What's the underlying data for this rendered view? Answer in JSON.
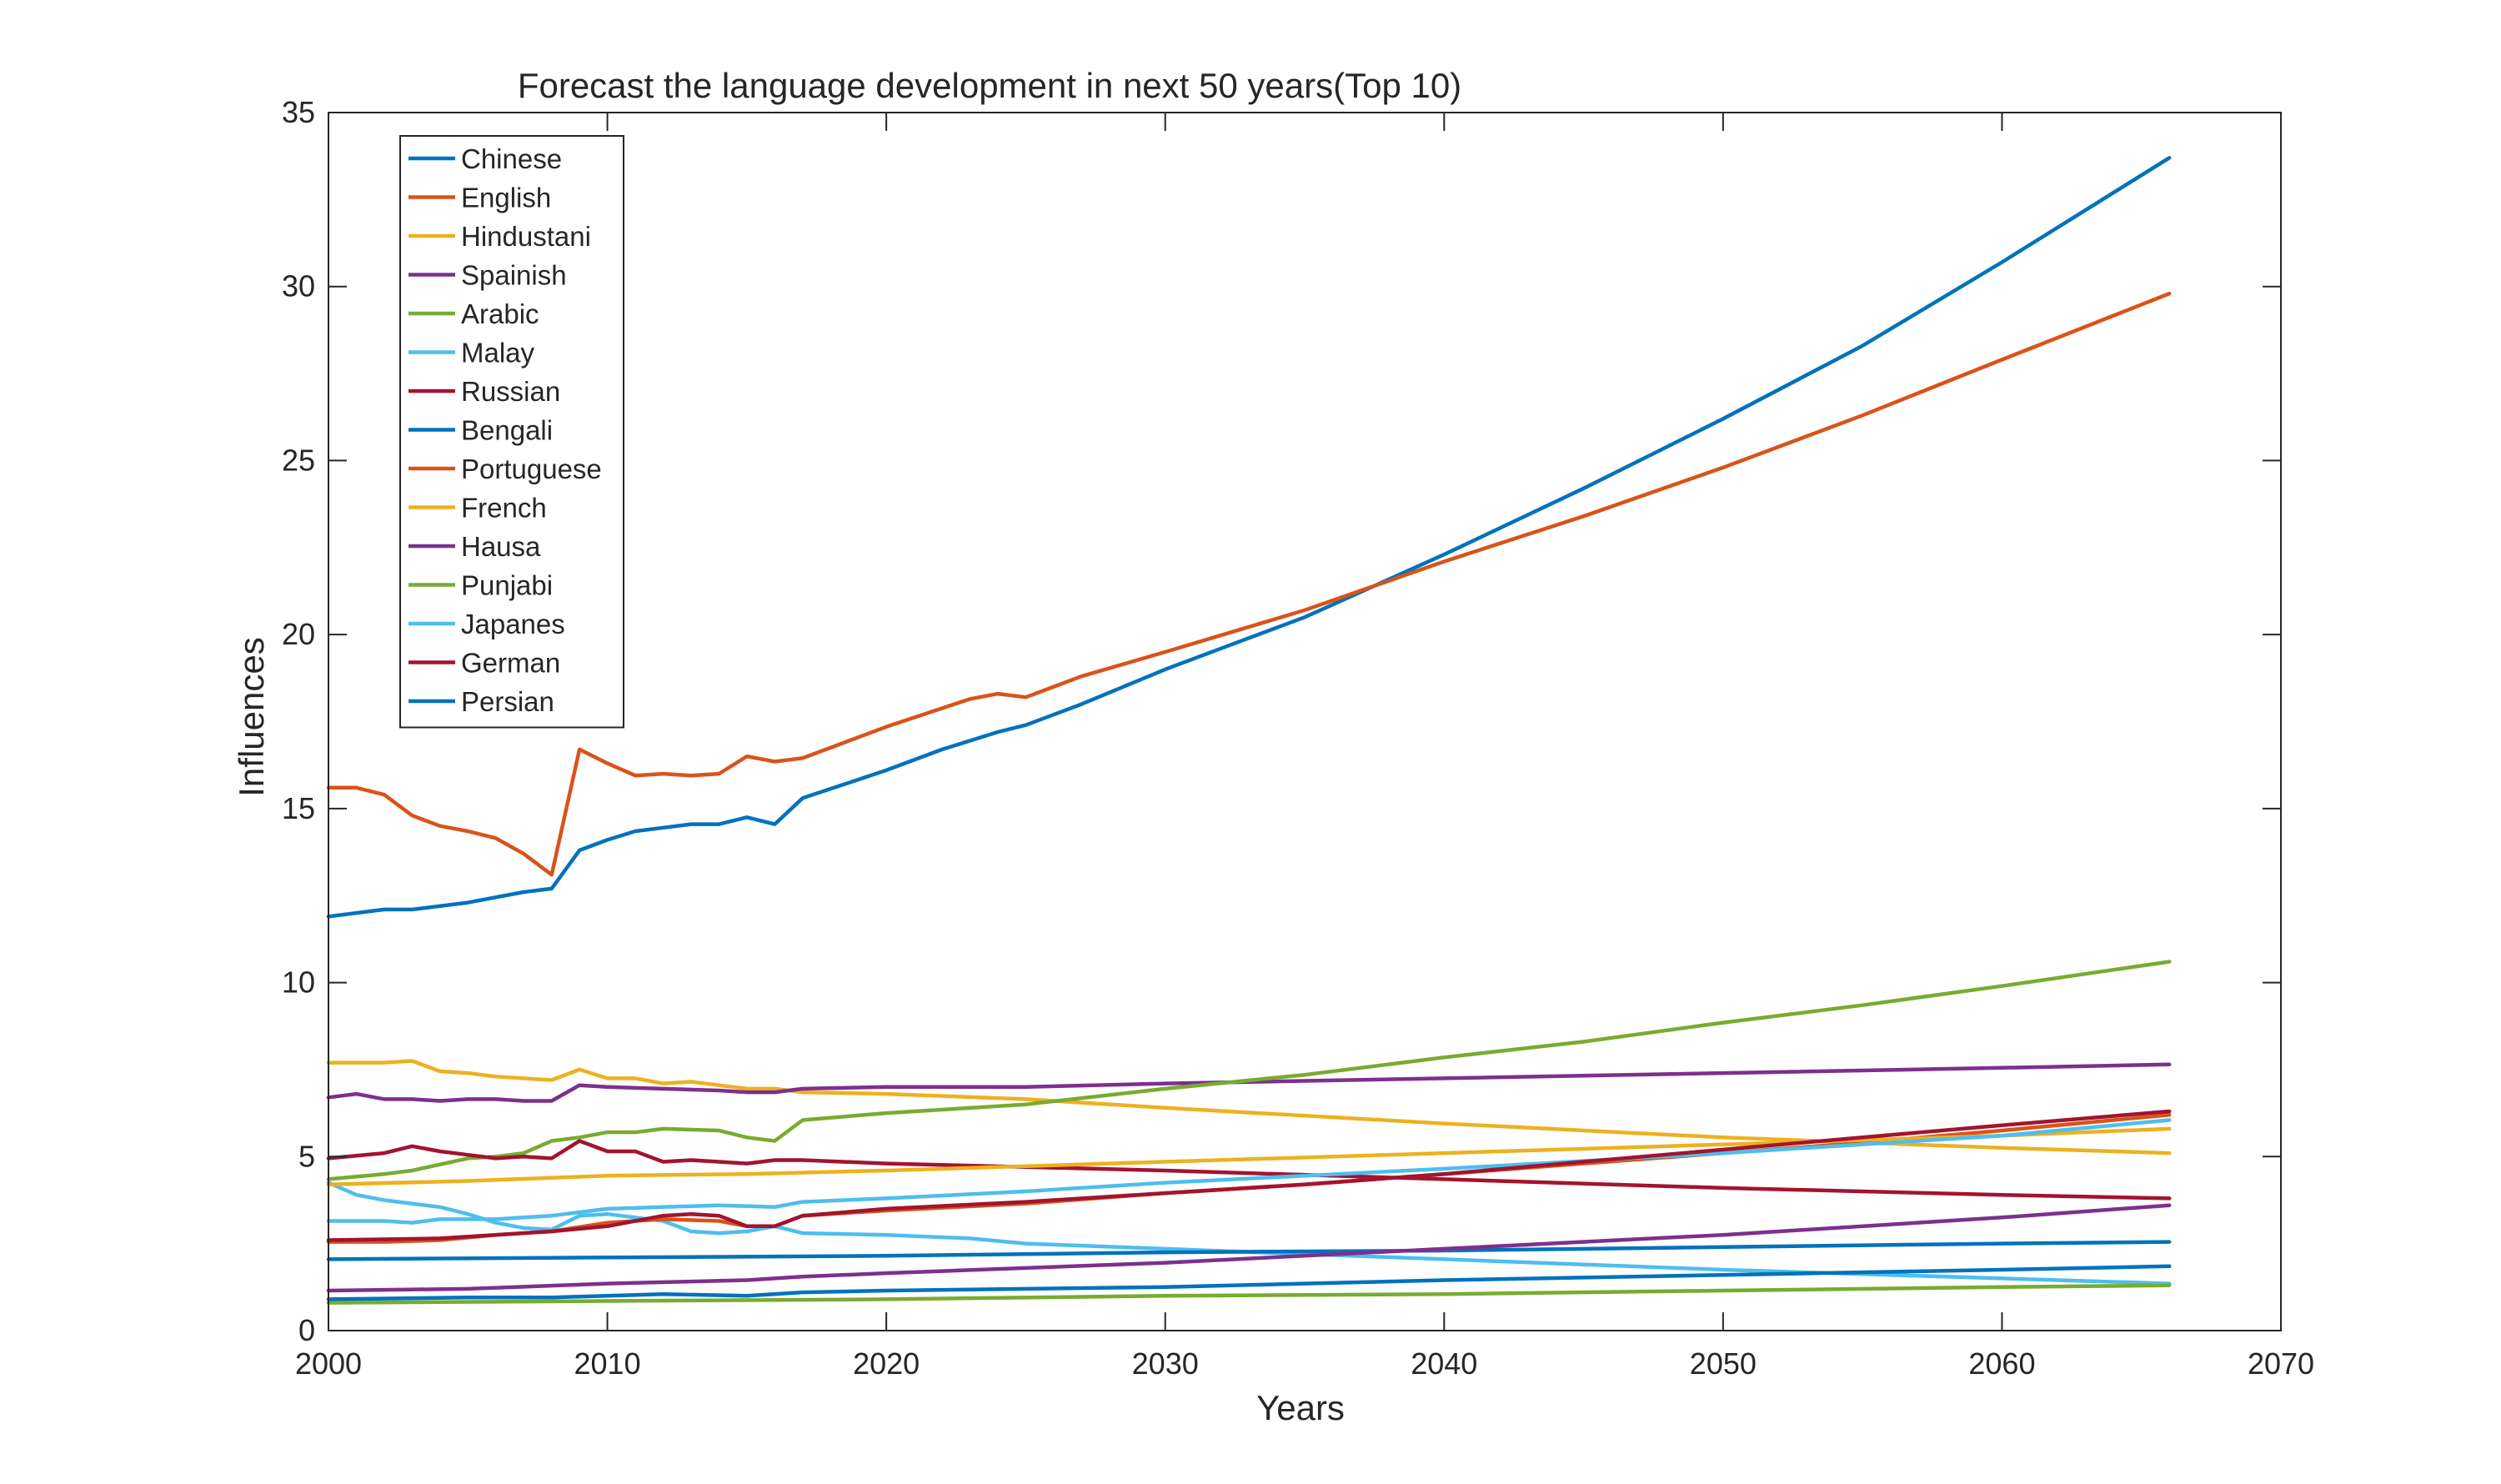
{
  "chart_data": {
    "type": "line",
    "title": "Forecast the language development in next 50 years(Top 10)",
    "xlabel": "Years",
    "ylabel": "Influences",
    "xlim": [
      2000,
      2070
    ],
    "ylim": [
      0,
      35
    ],
    "xticks": [
      2000,
      2010,
      2020,
      2030,
      2040,
      2050,
      2060,
      2070
    ],
    "yticks": [
      0,
      5,
      10,
      15,
      20,
      25,
      30,
      35
    ],
    "grid": false,
    "legend_position": "top-left",
    "series": [
      {
        "name": "Chinese",
        "color": "#0072BD",
        "points": [
          [
            2000,
            11.9
          ],
          [
            2002,
            12.1
          ],
          [
            2003,
            12.1
          ],
          [
            2005,
            12.3
          ],
          [
            2007,
            12.6
          ],
          [
            2008,
            12.7
          ],
          [
            2009,
            13.8
          ],
          [
            2010,
            14.1
          ],
          [
            2011,
            14.35
          ],
          [
            2012,
            14.45
          ],
          [
            2013,
            14.55
          ],
          [
            2014,
            14.55
          ],
          [
            2015,
            14.75
          ],
          [
            2016,
            14.55
          ],
          [
            2017,
            15.3
          ],
          [
            2020,
            16.1
          ],
          [
            2022,
            16.7
          ],
          [
            2024,
            17.2
          ],
          [
            2025,
            17.4
          ],
          [
            2027,
            18.0
          ],
          [
            2030,
            19.0
          ],
          [
            2032,
            19.6
          ],
          [
            2035,
            20.5
          ],
          [
            2040,
            22.3
          ],
          [
            2045,
            24.2
          ],
          [
            2050,
            26.2
          ],
          [
            2055,
            28.3
          ],
          [
            2060,
            30.7
          ],
          [
            2066,
            33.7
          ]
        ]
      },
      {
        "name": "English",
        "color": "#D95319",
        "points": [
          [
            2000,
            15.6
          ],
          [
            2001,
            15.6
          ],
          [
            2002,
            15.4
          ],
          [
            2003,
            14.8
          ],
          [
            2004,
            14.5
          ],
          [
            2005,
            14.35
          ],
          [
            2006,
            14.15
          ],
          [
            2007,
            13.7
          ],
          [
            2008,
            13.1
          ],
          [
            2009,
            16.7
          ],
          [
            2010,
            16.3
          ],
          [
            2011,
            15.95
          ],
          [
            2012,
            16.0
          ],
          [
            2013,
            15.95
          ],
          [
            2014,
            16.0
          ],
          [
            2015,
            16.5
          ],
          [
            2016,
            16.35
          ],
          [
            2017,
            16.45
          ],
          [
            2020,
            17.35
          ],
          [
            2023,
            18.15
          ],
          [
            2024,
            18.3
          ],
          [
            2025,
            18.2
          ],
          [
            2027,
            18.8
          ],
          [
            2030,
            19.5
          ],
          [
            2035,
            20.7
          ],
          [
            2040,
            22.1
          ],
          [
            2045,
            23.4
          ],
          [
            2050,
            24.8
          ],
          [
            2055,
            26.3
          ],
          [
            2060,
            27.9
          ],
          [
            2066,
            29.8
          ]
        ]
      },
      {
        "name": "Hindustani",
        "color": "#EDB120",
        "points": [
          [
            2000,
            7.7
          ],
          [
            2002,
            7.7
          ],
          [
            2003,
            7.75
          ],
          [
            2004,
            7.45
          ],
          [
            2005,
            7.4
          ],
          [
            2006,
            7.3
          ],
          [
            2008,
            7.2
          ],
          [
            2009,
            7.5
          ],
          [
            2010,
            7.25
          ],
          [
            2011,
            7.25
          ],
          [
            2012,
            7.1
          ],
          [
            2013,
            7.15
          ],
          [
            2014,
            7.05
          ],
          [
            2015,
            6.95
          ],
          [
            2016,
            6.95
          ],
          [
            2017,
            6.85
          ],
          [
            2020,
            6.8
          ],
          [
            2025,
            6.65
          ],
          [
            2030,
            6.4
          ],
          [
            2040,
            5.95
          ],
          [
            2050,
            5.55
          ],
          [
            2060,
            5.25
          ],
          [
            2066,
            5.1
          ]
        ]
      },
      {
        "name": "Spainish",
        "color": "#7E2F8E",
        "points": [
          [
            2000,
            6.7
          ],
          [
            2001,
            6.8
          ],
          [
            2002,
            6.65
          ],
          [
            2003,
            6.65
          ],
          [
            2004,
            6.6
          ],
          [
            2005,
            6.65
          ],
          [
            2006,
            6.65
          ],
          [
            2007,
            6.6
          ],
          [
            2008,
            6.6
          ],
          [
            2009,
            7.05
          ],
          [
            2010,
            7.0
          ],
          [
            2012,
            6.95
          ],
          [
            2014,
            6.9
          ],
          [
            2015,
            6.85
          ],
          [
            2016,
            6.85
          ],
          [
            2017,
            6.95
          ],
          [
            2020,
            7.0
          ],
          [
            2025,
            7.0
          ],
          [
            2030,
            7.1
          ],
          [
            2040,
            7.25
          ],
          [
            2050,
            7.4
          ],
          [
            2060,
            7.55
          ],
          [
            2066,
            7.65
          ]
        ]
      },
      {
        "name": "Arabic",
        "color": "#77AC30",
        "points": [
          [
            2000,
            4.35
          ],
          [
            2002,
            4.5
          ],
          [
            2003,
            4.6
          ],
          [
            2005,
            4.95
          ],
          [
            2006,
            5.0
          ],
          [
            2007,
            5.1
          ],
          [
            2008,
            5.45
          ],
          [
            2009,
            5.55
          ],
          [
            2010,
            5.7
          ],
          [
            2011,
            5.7
          ],
          [
            2012,
            5.8
          ],
          [
            2014,
            5.75
          ],
          [
            2015,
            5.55
          ],
          [
            2016,
            5.45
          ],
          [
            2017,
            6.05
          ],
          [
            2020,
            6.25
          ],
          [
            2025,
            6.5
          ],
          [
            2030,
            6.95
          ],
          [
            2035,
            7.35
          ],
          [
            2040,
            7.85
          ],
          [
            2045,
            8.3
          ],
          [
            2050,
            8.85
          ],
          [
            2055,
            9.35
          ],
          [
            2060,
            9.9
          ],
          [
            2066,
            10.6
          ]
        ]
      },
      {
        "name": "Malay",
        "color": "#4DBEEE",
        "points": [
          [
            2000,
            4.25
          ],
          [
            2001,
            3.9
          ],
          [
            2002,
            3.75
          ],
          [
            2004,
            3.55
          ],
          [
            2005,
            3.35
          ],
          [
            2006,
            3.1
          ],
          [
            2007,
            2.95
          ],
          [
            2008,
            2.9
          ],
          [
            2009,
            3.3
          ],
          [
            2010,
            3.35
          ],
          [
            2011,
            3.25
          ],
          [
            2012,
            3.15
          ],
          [
            2013,
            2.85
          ],
          [
            2014,
            2.8
          ],
          [
            2015,
            2.85
          ],
          [
            2016,
            3.0
          ],
          [
            2017,
            2.8
          ],
          [
            2020,
            2.75
          ],
          [
            2023,
            2.65
          ],
          [
            2025,
            2.5
          ],
          [
            2030,
            2.35
          ],
          [
            2035,
            2.2
          ],
          [
            2040,
            2.05
          ],
          [
            2050,
            1.75
          ],
          [
            2060,
            1.5
          ],
          [
            2066,
            1.35
          ]
        ]
      },
      {
        "name": "Russian",
        "color": "#A2142F",
        "points": [
          [
            2000,
            4.95
          ],
          [
            2002,
            5.1
          ],
          [
            2003,
            5.3
          ],
          [
            2004,
            5.15
          ],
          [
            2005,
            5.05
          ],
          [
            2006,
            4.95
          ],
          [
            2007,
            5.0
          ],
          [
            2008,
            4.95
          ],
          [
            2009,
            5.45
          ],
          [
            2010,
            5.15
          ],
          [
            2011,
            5.15
          ],
          [
            2012,
            4.85
          ],
          [
            2013,
            4.9
          ],
          [
            2014,
            4.85
          ],
          [
            2015,
            4.8
          ],
          [
            2016,
            4.9
          ],
          [
            2017,
            4.9
          ],
          [
            2020,
            4.8
          ],
          [
            2025,
            4.7
          ],
          [
            2030,
            4.6
          ],
          [
            2040,
            4.35
          ],
          [
            2050,
            4.1
          ],
          [
            2060,
            3.9
          ],
          [
            2066,
            3.8
          ]
        ]
      },
      {
        "name": "Bengali",
        "color": "#0072BD",
        "points": [
          [
            2000,
            2.05
          ],
          [
            2010,
            2.1
          ],
          [
            2020,
            2.15
          ],
          [
            2030,
            2.25
          ],
          [
            2040,
            2.3
          ],
          [
            2050,
            2.4
          ],
          [
            2060,
            2.5
          ],
          [
            2066,
            2.55
          ]
        ]
      },
      {
        "name": "Portuguese",
        "color": "#D95319",
        "points": [
          [
            2000,
            2.55
          ],
          [
            2002,
            2.55
          ],
          [
            2004,
            2.6
          ],
          [
            2006,
            2.75
          ],
          [
            2008,
            2.85
          ],
          [
            2010,
            3.1
          ],
          [
            2012,
            3.2
          ],
          [
            2014,
            3.15
          ],
          [
            2015,
            3.0
          ],
          [
            2016,
            3.0
          ],
          [
            2017,
            3.3
          ],
          [
            2020,
            3.45
          ],
          [
            2025,
            3.65
          ],
          [
            2030,
            3.95
          ],
          [
            2035,
            4.2
          ],
          [
            2040,
            4.5
          ],
          [
            2045,
            4.8
          ],
          [
            2050,
            5.1
          ],
          [
            2055,
            5.4
          ],
          [
            2060,
            5.75
          ],
          [
            2066,
            6.2
          ]
        ]
      },
      {
        "name": "French",
        "color": "#EDB120",
        "points": [
          [
            2000,
            4.2
          ],
          [
            2005,
            4.3
          ],
          [
            2010,
            4.45
          ],
          [
            2015,
            4.5
          ],
          [
            2020,
            4.6
          ],
          [
            2030,
            4.85
          ],
          [
            2040,
            5.1
          ],
          [
            2050,
            5.35
          ],
          [
            2060,
            5.6
          ],
          [
            2066,
            5.8
          ]
        ]
      },
      {
        "name": "Hausa",
        "color": "#7E2F8E",
        "points": [
          [
            2000,
            1.15
          ],
          [
            2005,
            1.2
          ],
          [
            2010,
            1.35
          ],
          [
            2015,
            1.45
          ],
          [
            2017,
            1.55
          ],
          [
            2020,
            1.65
          ],
          [
            2030,
            1.95
          ],
          [
            2040,
            2.35
          ],
          [
            2050,
            2.75
          ],
          [
            2060,
            3.25
          ],
          [
            2066,
            3.6
          ]
        ]
      },
      {
        "name": "Punjabi",
        "color": "#77AC30",
        "points": [
          [
            2000,
            0.8
          ],
          [
            2010,
            0.85
          ],
          [
            2020,
            0.9
          ],
          [
            2030,
            1.0
          ],
          [
            2040,
            1.05
          ],
          [
            2050,
            1.15
          ],
          [
            2060,
            1.25
          ],
          [
            2066,
            1.3
          ]
        ]
      },
      {
        "name": "Japanes",
        "color": "#4DBEEE",
        "points": [
          [
            2000,
            3.15
          ],
          [
            2002,
            3.15
          ],
          [
            2003,
            3.1
          ],
          [
            2004,
            3.2
          ],
          [
            2006,
            3.2
          ],
          [
            2008,
            3.3
          ],
          [
            2010,
            3.5
          ],
          [
            2012,
            3.55
          ],
          [
            2014,
            3.6
          ],
          [
            2016,
            3.55
          ],
          [
            2017,
            3.7
          ],
          [
            2020,
            3.8
          ],
          [
            2025,
            4.0
          ],
          [
            2030,
            4.25
          ],
          [
            2035,
            4.45
          ],
          [
            2040,
            4.65
          ],
          [
            2050,
            5.1
          ],
          [
            2060,
            5.6
          ],
          [
            2066,
            6.05
          ]
        ]
      },
      {
        "name": "German",
        "color": "#A2142F",
        "points": [
          [
            2000,
            2.6
          ],
          [
            2004,
            2.65
          ],
          [
            2008,
            2.85
          ],
          [
            2010,
            3.0
          ],
          [
            2012,
            3.3
          ],
          [
            2013,
            3.35
          ],
          [
            2014,
            3.3
          ],
          [
            2015,
            3.0
          ],
          [
            2016,
            3.0
          ],
          [
            2017,
            3.3
          ],
          [
            2020,
            3.5
          ],
          [
            2025,
            3.7
          ],
          [
            2030,
            3.95
          ],
          [
            2035,
            4.2
          ],
          [
            2040,
            4.5
          ],
          [
            2045,
            4.85
          ],
          [
            2050,
            5.2
          ],
          [
            2055,
            5.55
          ],
          [
            2060,
            5.9
          ],
          [
            2066,
            6.3
          ]
        ]
      },
      {
        "name": "Persian",
        "color": "#0072BD",
        "points": [
          [
            2000,
            0.9
          ],
          [
            2005,
            0.95
          ],
          [
            2008,
            0.95
          ],
          [
            2010,
            1.0
          ],
          [
            2012,
            1.05
          ],
          [
            2015,
            1.0
          ],
          [
            2017,
            1.1
          ],
          [
            2020,
            1.15
          ],
          [
            2030,
            1.25
          ],
          [
            2040,
            1.45
          ],
          [
            2050,
            1.6
          ],
          [
            2060,
            1.75
          ],
          [
            2066,
            1.85
          ]
        ]
      }
    ]
  }
}
